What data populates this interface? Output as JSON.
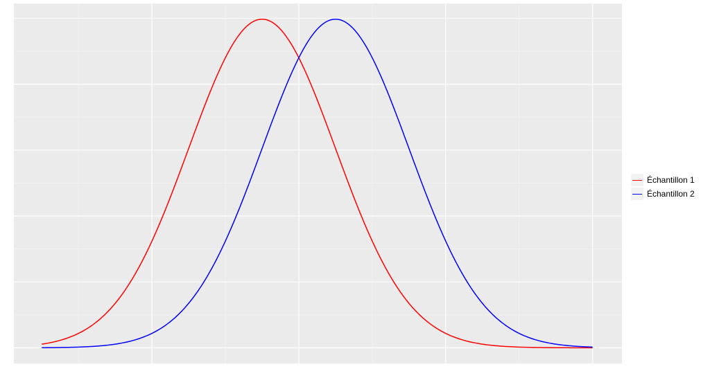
{
  "chart_data": {
    "type": "line",
    "title": "",
    "xlabel": "",
    "ylabel": "",
    "xlim": [
      -3.38,
      4.9
    ],
    "ylim": [
      -0.019,
      0.418
    ],
    "x_major_breaks": [
      -1.5,
      0.5,
      2.5,
      4.5
    ],
    "x_minor_breaks": [
      -2.5,
      -0.5,
      1.5,
      3.5
    ],
    "y_major_breaks": [
      0,
      0.08,
      0.16,
      0.24,
      0.32,
      0.4
    ],
    "y_minor_breaks": [
      0.04,
      0.12,
      0.2,
      0.28,
      0.36
    ],
    "grid": true,
    "tick_labels_shown": false,
    "x_range": [
      -3,
      4.5
    ],
    "legend_position": "right",
    "series": [
      {
        "name": "Échantillon 1",
        "color": "#ff0000",
        "distribution": "normal",
        "mean": 0,
        "sd": 1
      },
      {
        "name": "Échantillon 2",
        "color": "#0000ff",
        "distribution": "normal",
        "mean": 1,
        "sd": 1
      }
    ],
    "panel_background": "#ebebeb"
  }
}
